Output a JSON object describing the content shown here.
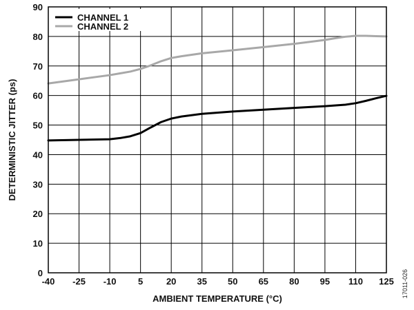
{
  "chart_data": {
    "type": "line",
    "xlabel": "AMBIENT TEMPERATURE (°C)",
    "ylabel": "DETERMINISTIC JITTER (ps)",
    "x_ticks": [
      "-40",
      "-25",
      "-10",
      "5",
      "20",
      "35",
      "50",
      "65",
      "80",
      "95",
      "110",
      "125"
    ],
    "y_ticks": [
      "0",
      "10",
      "20",
      "30",
      "40",
      "50",
      "60",
      "70",
      "80",
      "90"
    ],
    "xlim": [
      -40,
      125
    ],
    "ylim": [
      0,
      90
    ],
    "grid": true,
    "legend_position": "top-left",
    "series": [
      {
        "name": "CHANNEL 1",
        "color": "#000000",
        "x": [
          -40,
          -25,
          -10,
          -5,
          0,
          5,
          10,
          15,
          20,
          25,
          35,
          50,
          65,
          80,
          95,
          105,
          110,
          115,
          120,
          125
        ],
        "y": [
          44.8,
          45.0,
          45.2,
          45.6,
          46.2,
          47.3,
          49.2,
          51.0,
          52.2,
          52.9,
          53.8,
          54.6,
          55.2,
          55.8,
          56.4,
          56.9,
          57.4,
          58.2,
          59.1,
          59.9
        ]
      },
      {
        "name": "CHANNEL 2",
        "color": "#a8a8a8",
        "x": [
          -40,
          -25,
          -10,
          -5,
          0,
          5,
          10,
          15,
          20,
          25,
          35,
          50,
          65,
          80,
          95,
          100,
          105,
          110,
          115,
          120,
          125
        ],
        "y": [
          64.1,
          65.5,
          66.9,
          67.5,
          68.1,
          69.0,
          70.2,
          71.6,
          72.7,
          73.3,
          74.3,
          75.3,
          76.4,
          77.5,
          78.8,
          79.4,
          79.9,
          80.2,
          80.2,
          80.1,
          80.0
        ]
      }
    ]
  },
  "figure_id": "17011-026"
}
